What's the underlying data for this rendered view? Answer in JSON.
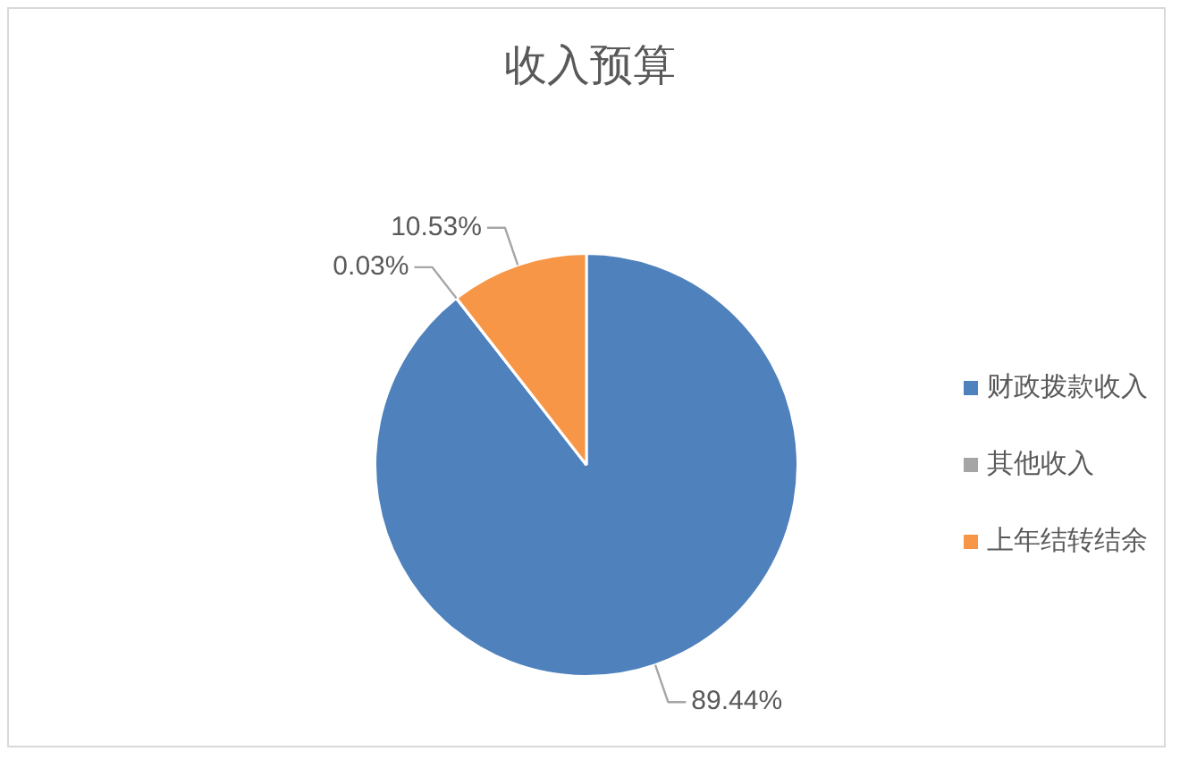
{
  "chart_data": {
    "type": "pie",
    "title": "收入预算",
    "categories": [
      "财政拨款收入",
      "其他收入",
      "上年结转结余"
    ],
    "values": [
      89.44,
      0.03,
      10.53
    ],
    "colors": [
      "#4f81bd",
      "#a5a5a5",
      "#f79646"
    ],
    "value_labels": [
      "89.44%",
      "0.03%",
      "10.53%"
    ],
    "legend": "right"
  }
}
